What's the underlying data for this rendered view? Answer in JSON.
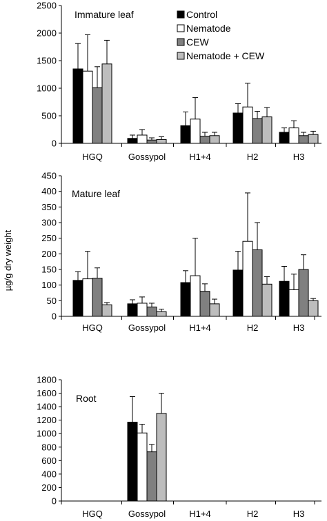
{
  "ylabel": "µg/g dry weight",
  "legend": [
    {
      "label": "Control",
      "color": "#000000"
    },
    {
      "label": "Nematode",
      "color": "#ffffff"
    },
    {
      "label": "CEW",
      "color": "#808080"
    },
    {
      "label": "Nematode + CEW",
      "color": "#bdbdbd"
    }
  ],
  "chart_data": [
    {
      "type": "bar",
      "title": "Immature leaf",
      "categories": [
        "HGQ",
        "Gossypol",
        "H1+4",
        "H2",
        "H3"
      ],
      "ylim": [
        0,
        2500
      ],
      "yticks": [
        "0",
        "500",
        "1000",
        "1500",
        "2000",
        "2500"
      ],
      "series": [
        {
          "name": "Control",
          "values": [
            1350,
            90,
            320,
            550,
            200
          ],
          "errors": [
            460,
            60,
            250,
            170,
            80
          ]
        },
        {
          "name": "Nematode",
          "values": [
            1310,
            150,
            440,
            660,
            280
          ],
          "errors": [
            660,
            100,
            390,
            430,
            130
          ]
        },
        {
          "name": "CEW",
          "values": [
            1010,
            60,
            130,
            450,
            140
          ],
          "errors": [
            380,
            40,
            70,
            130,
            60
          ]
        },
        {
          "name": "Nematode + CEW",
          "values": [
            1440,
            70,
            140,
            480,
            160
          ],
          "errors": [
            430,
            50,
            60,
            170,
            60
          ]
        }
      ]
    },
    {
      "type": "bar",
      "title": "Mature leaf",
      "categories": [
        "HGQ",
        "Gossypol",
        "H1+4",
        "H2",
        "H3"
      ],
      "ylim": [
        0,
        450
      ],
      "yticks": [
        "0",
        "50",
        "100",
        "150",
        "200",
        "250",
        "300",
        "350",
        "400",
        "450"
      ],
      "series": [
        {
          "name": "Control",
          "values": [
            115,
            40,
            108,
            148,
            112
          ],
          "errors": [
            28,
            13,
            38,
            60,
            48
          ]
        },
        {
          "name": "Nematode",
          "values": [
            120,
            42,
            130,
            240,
            85
          ],
          "errors": [
            88,
            20,
            120,
            155,
            50
          ]
        },
        {
          "name": "CEW",
          "values": [
            122,
            30,
            80,
            213,
            150
          ],
          "errors": [
            33,
            12,
            24,
            87,
            47
          ]
        },
        {
          "name": "Nematode + CEW",
          "values": [
            37,
            15,
            40,
            103,
            50
          ],
          "errors": [
            7,
            8,
            15,
            24,
            7
          ]
        }
      ]
    },
    {
      "type": "bar",
      "title": "Root",
      "categories": [
        "HGQ",
        "Gossypol",
        "H1+4",
        "H2",
        "H3"
      ],
      "ylim": [
        0,
        1800
      ],
      "yticks": [
        "0",
        "200",
        "400",
        "600",
        "800",
        "1000",
        "1200",
        "1400",
        "1600",
        "1800"
      ],
      "series": [
        {
          "name": "Control",
          "values": [
            null,
            1170,
            null,
            null,
            null
          ],
          "errors": [
            null,
            380,
            null,
            null,
            null
          ]
        },
        {
          "name": "Nematode",
          "values": [
            null,
            1010,
            null,
            null,
            null
          ],
          "errors": [
            null,
            130,
            null,
            null,
            null
          ]
        },
        {
          "name": "CEW",
          "values": [
            null,
            730,
            null,
            null,
            null
          ],
          "errors": [
            null,
            110,
            null,
            null,
            null
          ]
        },
        {
          "name": "Nematode + CEW",
          "values": [
            null,
            1300,
            null,
            null,
            null
          ],
          "errors": [
            null,
            300,
            null,
            null,
            null
          ]
        }
      ]
    }
  ]
}
